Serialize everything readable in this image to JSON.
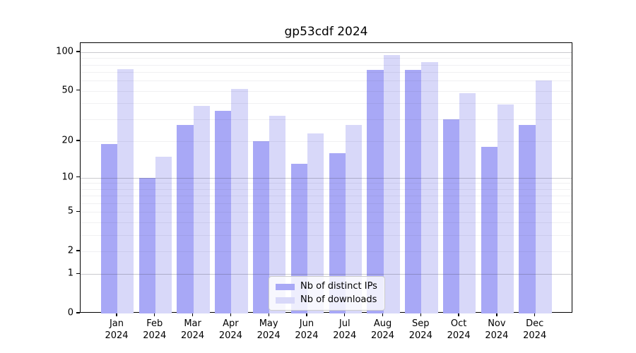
{
  "chart_data": {
    "type": "bar",
    "title": "gp53cdf 2024",
    "categories": [
      "Jan",
      "Feb",
      "Mar",
      "Apr",
      "May",
      "Jun",
      "Jul",
      "Aug",
      "Sep",
      "Oct",
      "Nov",
      "Dec"
    ],
    "category_year": "2024",
    "series": [
      {
        "name": "Nb of distinct IPs",
        "color": "#a8a8f6",
        "values": [
          19,
          10,
          27,
          35,
          20,
          13,
          16,
          73,
          73,
          30,
          18,
          27
        ]
      },
      {
        "name": "Nb of downloads",
        "color": "#d8d8f9",
        "values": [
          74,
          15,
          38,
          52,
          32,
          23,
          27,
          95,
          84,
          48,
          39,
          60
        ]
      }
    ],
    "yscale": "log10(1+y)",
    "ylim": [
      0,
      118
    ],
    "yticks": [
      0,
      1,
      2,
      5,
      10,
      20,
      50,
      100
    ],
    "grid": {
      "major_lines": [
        1,
        10,
        100
      ],
      "minor_lines": [
        2,
        3,
        4,
        5,
        6,
        7,
        8,
        9,
        20,
        30,
        40,
        50,
        60,
        70,
        80,
        90
      ],
      "major_color": "rgba(60,60,75,0.27)",
      "minor_color": "rgba(60,60,75,0.075)"
    },
    "legend_position": "lower center",
    "grid_on": true
  },
  "legend": {
    "items": [
      {
        "label": "Nb of distinct IPs",
        "color": "#a8a8f6"
      },
      {
        "label": "Nb of downloads",
        "color": "#d8d8f9"
      }
    ]
  }
}
